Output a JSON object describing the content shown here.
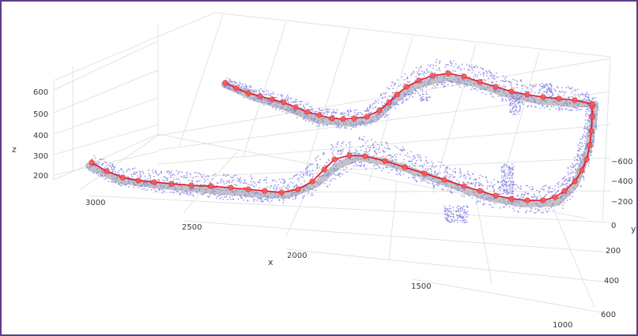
{
  "chart_data": {
    "type": "scatter3d",
    "title": "",
    "axes": {
      "x": {
        "label": "x",
        "ticks": [
          "3000",
          "2500",
          "2000",
          "1500",
          "1000"
        ],
        "range": [
          950,
          3150
        ]
      },
      "y": {
        "label": "y",
        "ticks": [
          "−600",
          "−400",
          "−200",
          "0",
          "200",
          "400",
          "600"
        ],
        "range": [
          -700,
          650
        ]
      },
      "z": {
        "label": "z",
        "ticks": [
          "600",
          "500",
          "400",
          "300",
          "200"
        ],
        "range": [
          150,
          650
        ]
      }
    },
    "grid": true,
    "series": [
      {
        "kind": "mesh-point-cloud",
        "color": "#7b7be6",
        "shade_color": "#b9b9bd"
      },
      {
        "kind": "centerline",
        "color": "#e8141b",
        "marker_color": "#f25a5a"
      }
    ]
  }
}
